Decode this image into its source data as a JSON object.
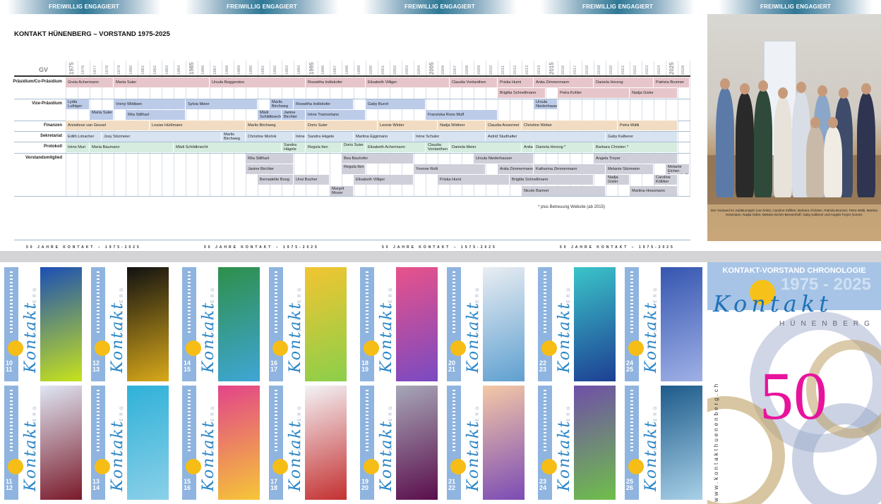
{
  "banners": [
    "FREIWILLIG ENGAGIERT",
    "FREIWILLIG ENGAGIERT",
    "FREIWILLIG ENGAGIERT",
    "FREIWILLIG ENGAGIERT",
    "FREIWILLIG ENGAGIERT"
  ],
  "title": "KONTAKT HÜNENBERG – VORSTAND 1975-2025",
  "footer": "50 JAHRE KONTAKT – 1975-2025",
  "chart": {
    "type": "timeline",
    "header_label": "GV",
    "years": [
      1975,
      1976,
      1977,
      1978,
      1979,
      1980,
      1981,
      1982,
      1983,
      1984,
      1985,
      1986,
      1987,
      1988,
      1989,
      1990,
      1991,
      1992,
      1993,
      1994,
      1995,
      1996,
      1997,
      1998,
      1999,
      2000,
      2001,
      2002,
      2003,
      2004,
      2005,
      2006,
      2007,
      2008,
      2009,
      2010,
      2011,
      2012,
      2013,
      2014,
      2015,
      2016,
      2017,
      2018,
      2019,
      2020,
      2021,
      2022,
      2023,
      2024,
      2025,
      2026
    ],
    "major_years": [
      1975,
      1985,
      1995,
      2005,
      2015,
      2025
    ],
    "colors": {
      "praesidium": "#e6c6cb",
      "vize": "#bccbe8",
      "finanzen": "#f1dcc3",
      "sekretariat": "#d7e3f1",
      "protokoll": "#d5ecdf",
      "vorstand": "#cfcfda"
    },
    "rows": [
      {
        "label": "Präsidium/Co-Präsidium",
        "color": "praesidium",
        "lanes": [
          [
            {
              "name": "Greta Achermann",
              "from": 1975,
              "to": 1979
            },
            {
              "name": "Marta Suter",
              "from": 1979,
              "to": 1987
            },
            {
              "name": "Ursula Beggerstos",
              "from": 1987,
              "to": 1995
            },
            {
              "name": "Roswitha Indlekofer",
              "from": 1995,
              "to": 2000
            },
            {
              "name": "Elisabeth Villiger",
              "from": 2000,
              "to": 2007
            },
            {
              "name": "Claudia Vonlanthen",
              "from": 2007,
              "to": 2011
            },
            {
              "name": "Priska Humi",
              "from": 2011,
              "to": 2014
            },
            {
              "name": "Anita Zimmermann",
              "from": 2014,
              "to": 2019
            },
            {
              "name": "Daniela Herzog",
              "from": 2019,
              "to": 2024
            },
            {
              "name": "Patrizia Brunner",
              "from": 2024,
              "to": 2027
            }
          ],
          [
            {
              "name": "Brigitta Schnellmann",
              "from": 2011,
              "to": 2015
            },
            {
              "name": "Petra Kohler",
              "from": 2016,
              "to": 2022
            },
            {
              "name": "Nadja Gisler",
              "from": 2022,
              "to": 2026
            }
          ]
        ]
      },
      {
        "label": "Vize-Präsidium",
        "color": "vize",
        "lanes": [
          [
            {
              "name": "Lydia Luthiger",
              "from": 1975,
              "to": 1977
            },
            {
              "name": "Vreny Wildisen",
              "from": 1979,
              "to": 1985
            },
            {
              "name": "Sylvia Meier",
              "from": 1985,
              "to": 1991
            },
            {
              "name": "Marlis Birchweg",
              "from": 1992,
              "to": 1994
            },
            {
              "name": "Roswitha Indlekofer",
              "from": 1994,
              "to": 1999
            },
            {
              "name": "Gaby Burch",
              "from": 2000,
              "to": 2005
            },
            {
              "name": "Ursula Niederhauser",
              "from": 2014,
              "to": 2016
            }
          ],
          [
            {
              "name": "Marta Suter",
              "from": 1977,
              "to": 1979
            },
            {
              "name": "Rita Stillhart",
              "from": 1980,
              "to": 1985
            },
            {
              "name": "Mädi Schildknecht",
              "from": 1991,
              "to": 1993
            },
            {
              "name": "Janine Birchler",
              "from": 1993,
              "to": 1995
            },
            {
              "name": "Irène Tramontano",
              "from": 1995,
              "to": 2000
            },
            {
              "name": "Franziska Roos Muff",
              "from": 2005,
              "to": 2011
            }
          ]
        ]
      },
      {
        "label": "Finanzen",
        "color": "finanzen",
        "lanes": [
          [
            {
              "name": "Anneliese van Gessel",
              "from": 1975,
              "to": 1982
            },
            {
              "name": "Louise Hürlimann",
              "from": 1982,
              "to": 1990
            },
            {
              "name": "Marlis Birchweg",
              "from": 1990,
              "to": 1995
            },
            {
              "name": "Doris Suter",
              "from": 1995,
              "to": 2001
            },
            {
              "name": "Leonie Winter",
              "from": 2001,
              "to": 2006
            },
            {
              "name": "Nadja Widmer",
              "from": 2006,
              "to": 2010
            },
            {
              "name": "Claudia Ansermet",
              "from": 2010,
              "to": 2013
            },
            {
              "name": "Christine Weber",
              "from": 2013,
              "to": 2021
            },
            {
              "name": "Petra Wälti",
              "from": 2021,
              "to": 2026
            }
          ]
        ]
      },
      {
        "label": "Sekretariat",
        "color": "sekretariat",
        "lanes": [
          [
            {
              "name": "Edith Limacher",
              "from": 1975,
              "to": 1978
            },
            {
              "name": "Josy Stürmeier",
              "from": 1978,
              "to": 1988
            },
            {
              "name": "Marlis Birchweg",
              "from": 1988,
              "to": 1990
            },
            {
              "name": "Christine Morlok",
              "from": 1990,
              "to": 1994
            },
            {
              "name": "Irène Tram",
              "from": 1994,
              "to": 1995
            },
            {
              "name": "Sandra Hägele",
              "from": 1995,
              "to": 1999
            },
            {
              "name": "Martina Eggimann",
              "from": 1999,
              "to": 2004
            },
            {
              "name": "Irène Schuler",
              "from": 2004,
              "to": 2010
            },
            {
              "name": "Astrid Studhalter",
              "from": 2010,
              "to": 2020
            },
            {
              "name": "Gaby Kalberer",
              "from": 2020,
              "to": 2026
            }
          ]
        ]
      },
      {
        "label": "Protokoll",
        "color": "protokoll",
        "lanes": [
          [
            {
              "name": "Irène Muri",
              "from": 1975,
              "to": 1977
            },
            {
              "name": "Maria Baumann",
              "from": 1977,
              "to": 1984
            },
            {
              "name": "Mädi Schildknecht",
              "from": 1984,
              "to": 1993
            },
            {
              "name": "Sandra Hägele",
              "from": 1993,
              "to": 1995
            },
            {
              "name": "Regula Iten",
              "from": 1995,
              "to": 1998
            },
            {
              "name": "Doris Suter",
              "from": 1998,
              "to": 2000
            },
            {
              "name": "Elisabeth Achermann",
              "from": 2000,
              "to": 2005
            },
            {
              "name": "Claudia Vonlanthen",
              "from": 2005,
              "to": 2007
            },
            {
              "name": "Daniela Meier",
              "from": 2007,
              "to": 2013
            },
            {
              "name": "Anita Zim",
              "from": 2013,
              "to": 2014
            },
            {
              "name": "Daniela Herzog *",
              "from": 2014,
              "to": 2019
            },
            {
              "name": "Barbara Christen *",
              "from": 2019,
              "to": 2026
            }
          ]
        ]
      },
      {
        "label": "Vorstandsmitglied",
        "color": "vorstand",
        "lanes": [
          [
            {
              "name": "Rita Stillhart",
              "from": 1990,
              "to": 1994
            },
            {
              "name": "Bea Bauhofer",
              "from": 1998,
              "to": 2004
            },
            {
              "name": "Ursula Niederhauser",
              "from": 2009,
              "to": 2014
            },
            {
              "name": "Angela Treyer",
              "from": 2019,
              "to": 2026
            }
          ],
          [
            {
              "name": "Janine Birchler",
              "from": 1990,
              "to": 1994
            },
            {
              "name": "Regula Iten",
              "from": 1998,
              "to": 2000
            },
            {
              "name": "Yvonne Rolli",
              "from": 2004,
              "to": 2010
            },
            {
              "name": "Anita Zimmermann",
              "from": 2011,
              "to": 2014
            },
            {
              "name": "Katharina Zimmermann",
              "from": 2014,
              "to": 2020
            },
            {
              "name": "Melanie Stürmeier",
              "from": 2020,
              "to": 2024
            },
            {
              "name": "Melanie Eicher-Bessenhoff",
              "from": 2025,
              "to": 2027
            }
          ],
          [
            {
              "name": "Bernadette Boog",
              "from": 1991,
              "to": 1994
            },
            {
              "name": "Unsi Bucher",
              "from": 1994,
              "to": 1997
            },
            {
              "name": "Elisabeth Villiger",
              "from": 1999,
              "to": 2004
            },
            {
              "name": "Priska Humi",
              "from": 2006,
              "to": 2012
            },
            {
              "name": "Brigitta Schnellmann",
              "from": 2012,
              "to": 2019
            },
            {
              "name": "Nadja Gisler",
              "from": 2020,
              "to": 2022
            },
            {
              "name": "Caroline Kölliker",
              "from": 2024,
              "to": 2026
            }
          ],
          [
            {
              "name": "Margrit Moser",
              "from": 1997,
              "to": 1999
            },
            {
              "name": "Nicole Barmet",
              "from": 2013,
              "to": 2020
            },
            {
              "name": "Martina Hossmann",
              "from": 2022,
              "to": 2026
            }
          ]
        ]
      }
    ],
    "note": "* plus Betreuung Website (ab 2015)"
  },
  "photo": {
    "caption": "Der Vorstand im Jubiläumsjahr (von links): Caroline Kölliker, Barbara Christen, Patrizia Brunner, Petra Wälti, Martina Hossmann, Nadja Gisler, Melanie Eicher-Bessenhoff, Gaby Kalberer und Angela Treyer (vorne)."
  },
  "covers": [
    {
      "label": "10\n11",
      "art": [
        "#1b4fb5",
        "#c7e21c"
      ]
    },
    {
      "label": "12\n13",
      "art": [
        "#111111",
        "#d9a91a"
      ]
    },
    {
      "label": "14\n15",
      "art": [
        "#2e8f4a",
        "#3fa6d6"
      ]
    },
    {
      "label": "16\n17",
      "art": [
        "#f2c531",
        "#8bcf4a"
      ]
    },
    {
      "label": "18\n19",
      "art": [
        "#e8528a",
        "#7a4ac2"
      ]
    },
    {
      "label": "20\n21",
      "art": [
        "#e9edf2",
        "#5fa0d0"
      ]
    },
    {
      "label": "22\n23",
      "art": [
        "#3bc4c9",
        "#1d3f93"
      ]
    },
    {
      "label": "24\n25",
      "art": [
        "#3556b0",
        "#9fb0e6"
      ]
    },
    {
      "label": "11\n12",
      "art": [
        "#dfe6f4",
        "#7a1a2a"
      ]
    },
    {
      "label": "13\n14",
      "art": [
        "#2fb1d8",
        "#8bd0e8"
      ]
    },
    {
      "label": "15\n16",
      "art": [
        "#e2448a",
        "#f6c637"
      ]
    },
    {
      "label": "17\n18",
      "art": [
        "#f3f3f6",
        "#c43030"
      ]
    },
    {
      "label": "19\n20",
      "art": [
        "#a7a7b8",
        "#5a0e4c"
      ]
    },
    {
      "label": "21\n22",
      "art": [
        "#f4c9a6",
        "#7b4bb5"
      ]
    },
    {
      "label": "23\n24",
      "art": [
        "#6f4fa8",
        "#6fbf4a"
      ]
    },
    {
      "label": "25\n26",
      "art": [
        "#1d5b8a",
        "#a8d0e8"
      ]
    }
  ],
  "cover_logo": "Kontakt",
  "cover_subtitle": "HÜNENBERG",
  "big_cover": {
    "title": "KONTAKT-VORSTAND CHRONOLOGIE",
    "years": "1975 - 2025",
    "logo": "Kontakt",
    "subtitle": "HÜNENBERG",
    "number": "50",
    "url": "www.kontakthuenenberg.ch",
    "accent": "#e8139c"
  }
}
